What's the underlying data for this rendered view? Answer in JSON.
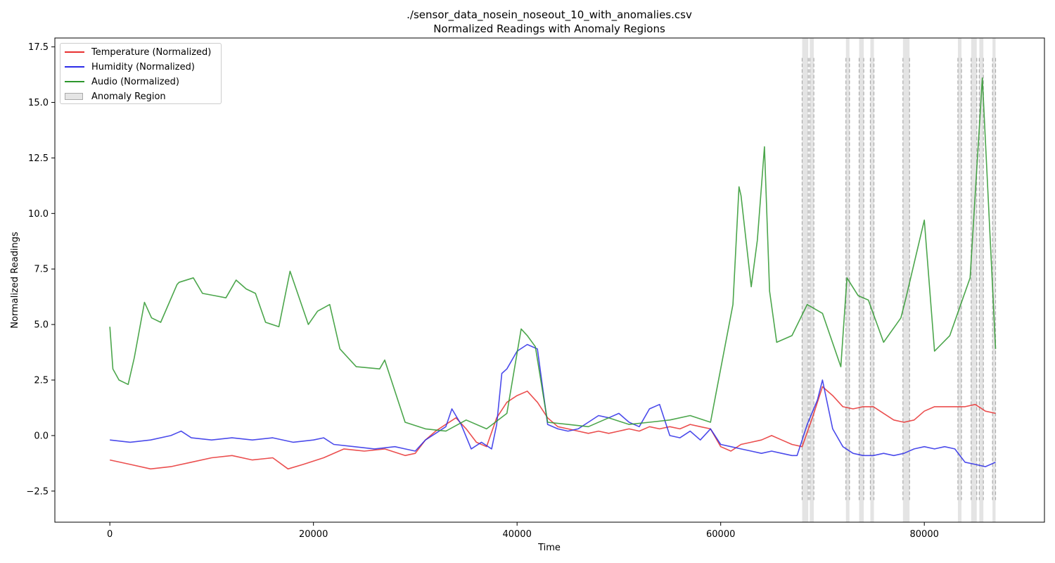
{
  "chart_data": {
    "type": "line",
    "title": "./sensor_data_nosein_noseout_10_with_anomalies.csv",
    "subtitle": "Normalized Readings with Anomaly Regions",
    "xlabel": "Time",
    "ylabel": "Normalized Readings",
    "xlim": [
      -5400,
      91800
    ],
    "ylim": [
      -3.9,
      17.9
    ],
    "xticks": [
      0,
      20000,
      40000,
      60000,
      80000
    ],
    "xtick_labels": [
      "0",
      "20000",
      "40000",
      "60000",
      "80000"
    ],
    "yticks": [
      -2.5,
      0.0,
      2.5,
      5.0,
      7.5,
      10.0,
      12.5,
      15.0,
      17.5
    ],
    "ytick_labels": [
      "−2.5",
      "0.0",
      "2.5",
      "5.0",
      "7.5",
      "10.0",
      "12.5",
      "15.0",
      "17.5"
    ],
    "grid": false,
    "legend_position": "top-left",
    "legend": [
      "Temperature (Normalized)",
      "Humidity (Normalized)",
      "Audio (Normalized)",
      "Anomaly Region"
    ],
    "colors": {
      "temperature": "#e83030",
      "humidity": "#2c2ce8",
      "audio": "#2d962d",
      "anomaly": "#bbbbbb"
    },
    "anomaly_regions": [
      {
        "start": 68000,
        "end": 68600
      },
      {
        "start": 68750,
        "end": 69150
      },
      {
        "start": 72300,
        "end": 72650
      },
      {
        "start": 73600,
        "end": 74050
      },
      {
        "start": 74700,
        "end": 75050
      },
      {
        "start": 77900,
        "end": 78550
      },
      {
        "start": 83300,
        "end": 83650
      },
      {
        "start": 84600,
        "end": 85150
      },
      {
        "start": 85400,
        "end": 85800
      },
      {
        "start": 86700,
        "end": 87000
      }
    ],
    "anomaly_dashed_range": [
      -2.9,
      17.0
    ],
    "series": [
      {
        "name": "Temperature (Normalized)",
        "x": [
          0,
          2000,
          4000,
          6000,
          8000,
          10000,
          12000,
          14000,
          16000,
          17500,
          19000,
          21000,
          23000,
          25000,
          27000,
          29000,
          30000,
          31000,
          32000,
          33000,
          34000,
          35000,
          36000,
          37000,
          38000,
          39000,
          40000,
          41000,
          42000,
          43000,
          44000,
          45000,
          46000,
          47000,
          48000,
          49000,
          50000,
          51000,
          52000,
          53000,
          54000,
          55000,
          56000,
          57000,
          58000,
          59000,
          60000,
          61000,
          62000,
          63000,
          64000,
          65000,
          66000,
          67000,
          68000,
          69000,
          70000,
          71000,
          72000,
          73000,
          74000,
          75000,
          76000,
          77000,
          78000,
          79000,
          80000,
          81000,
          82000,
          83000,
          84000,
          85000,
          86000,
          87000
        ],
        "values": [
          -1.1,
          -1.3,
          -1.5,
          -1.4,
          -1.2,
          -1.0,
          -0.9,
          -1.1,
          -1.0,
          -1.5,
          -1.3,
          -1.0,
          -0.6,
          -0.7,
          -0.6,
          -0.9,
          -0.8,
          -0.2,
          0.2,
          0.5,
          0.8,
          0.3,
          -0.3,
          -0.5,
          0.8,
          1.5,
          1.8,
          2.0,
          1.5,
          0.8,
          0.4,
          0.3,
          0.2,
          0.1,
          0.2,
          0.1,
          0.2,
          0.3,
          0.2,
          0.4,
          0.3,
          0.4,
          0.3,
          0.5,
          0.4,
          0.3,
          -0.5,
          -0.7,
          -0.4,
          -0.3,
          -0.2,
          0.0,
          -0.2,
          -0.4,
          -0.5,
          0.8,
          2.2,
          1.8,
          1.3,
          1.2,
          1.3,
          1.3,
          1.0,
          0.7,
          0.6,
          0.7,
          1.1,
          1.3,
          1.3,
          1.3,
          1.3,
          1.4,
          1.1,
          1.0
        ]
      },
      {
        "name": "Humidity (Normalized)",
        "x": [
          0,
          2000,
          4000,
          6000,
          7000,
          8000,
          10000,
          12000,
          14000,
          16000,
          18000,
          20000,
          21000,
          22000,
          24000,
          26000,
          28000,
          29000,
          30000,
          31000,
          32000,
          33000,
          33600,
          34500,
          35500,
          36500,
          37500,
          38000,
          38500,
          39000,
          40000,
          41000,
          42000,
          43000,
          44000,
          45000,
          46000,
          47000,
          48000,
          49000,
          50000,
          51000,
          52000,
          53000,
          54000,
          55000,
          56000,
          57000,
          58000,
          59000,
          60000,
          61000,
          62000,
          63000,
          64000,
          65000,
          66000,
          67000,
          67500,
          68500,
          69500,
          70000,
          71000,
          72000,
          73000,
          74000,
          75000,
          76000,
          77000,
          78000,
          79000,
          80000,
          81000,
          82000,
          83000,
          84000,
          85000,
          86000,
          87000
        ],
        "values": [
          -0.2,
          -0.3,
          -0.2,
          0.0,
          0.2,
          -0.1,
          -0.2,
          -0.1,
          -0.2,
          -0.1,
          -0.3,
          -0.2,
          -0.1,
          -0.4,
          -0.5,
          -0.6,
          -0.5,
          -0.6,
          -0.7,
          -0.2,
          0.1,
          0.4,
          1.2,
          0.5,
          -0.6,
          -0.3,
          -0.6,
          0.5,
          2.8,
          3.0,
          3.8,
          4.1,
          3.9,
          0.5,
          0.3,
          0.2,
          0.3,
          0.6,
          0.9,
          0.8,
          1.0,
          0.6,
          0.4,
          1.2,
          1.4,
          0.0,
          -0.1,
          0.2,
          -0.2,
          0.3,
          -0.4,
          -0.5,
          -0.6,
          -0.7,
          -0.8,
          -0.7,
          -0.8,
          -0.9,
          -0.9,
          0.5,
          1.6,
          2.5,
          0.3,
          -0.5,
          -0.8,
          -0.9,
          -0.9,
          -0.8,
          -0.9,
          -0.8,
          -0.6,
          -0.5,
          -0.6,
          -0.5,
          -0.6,
          -1.2,
          -1.3,
          -1.4,
          -1.2
        ]
      },
      {
        "name": "Audio (Normalized)",
        "x": [
          0,
          300,
          900,
          1800,
          2400,
          3400,
          4100,
          5000,
          6600,
          6800,
          8200,
          9100,
          10300,
          11400,
          12400,
          13400,
          14300,
          15300,
          16600,
          17700,
          19500,
          20400,
          21600,
          22600,
          24200,
          26500,
          27000,
          29000,
          31000,
          33000,
          35000,
          37000,
          39000,
          40400,
          41000,
          41800,
          43000,
          45000,
          47000,
          49000,
          51000,
          53000,
          55000,
          57000,
          59000,
          61200,
          61800,
          62000,
          63000,
          63600,
          64300,
          64800,
          65500,
          67000,
          68500,
          70000,
          71800,
          72400,
          73500,
          74500,
          76000,
          77700,
          78200,
          80000,
          81000,
          82500,
          84500,
          85700,
          87000
        ],
        "values": [
          4.9,
          3.0,
          2.5,
          2.3,
          3.5,
          6.0,
          5.3,
          5.1,
          6.8,
          6.9,
          7.1,
          6.4,
          6.3,
          6.2,
          7.0,
          6.6,
          6.4,
          5.1,
          4.9,
          7.4,
          5.0,
          5.6,
          5.9,
          3.9,
          3.1,
          3.0,
          3.4,
          0.6,
          0.3,
          0.2,
          0.7,
          0.3,
          1.0,
          4.8,
          4.5,
          4.0,
          0.6,
          0.5,
          0.4,
          0.8,
          0.5,
          0.6,
          0.7,
          0.9,
          0.6,
          5.9,
          11.2,
          10.8,
          6.7,
          8.8,
          13.0,
          6.5,
          4.2,
          4.5,
          5.9,
          5.5,
          3.1,
          7.1,
          6.3,
          6.1,
          4.2,
          5.3,
          6.2,
          9.7,
          3.8,
          4.5,
          7.1,
          16.1,
          3.9
        ]
      }
    ]
  }
}
